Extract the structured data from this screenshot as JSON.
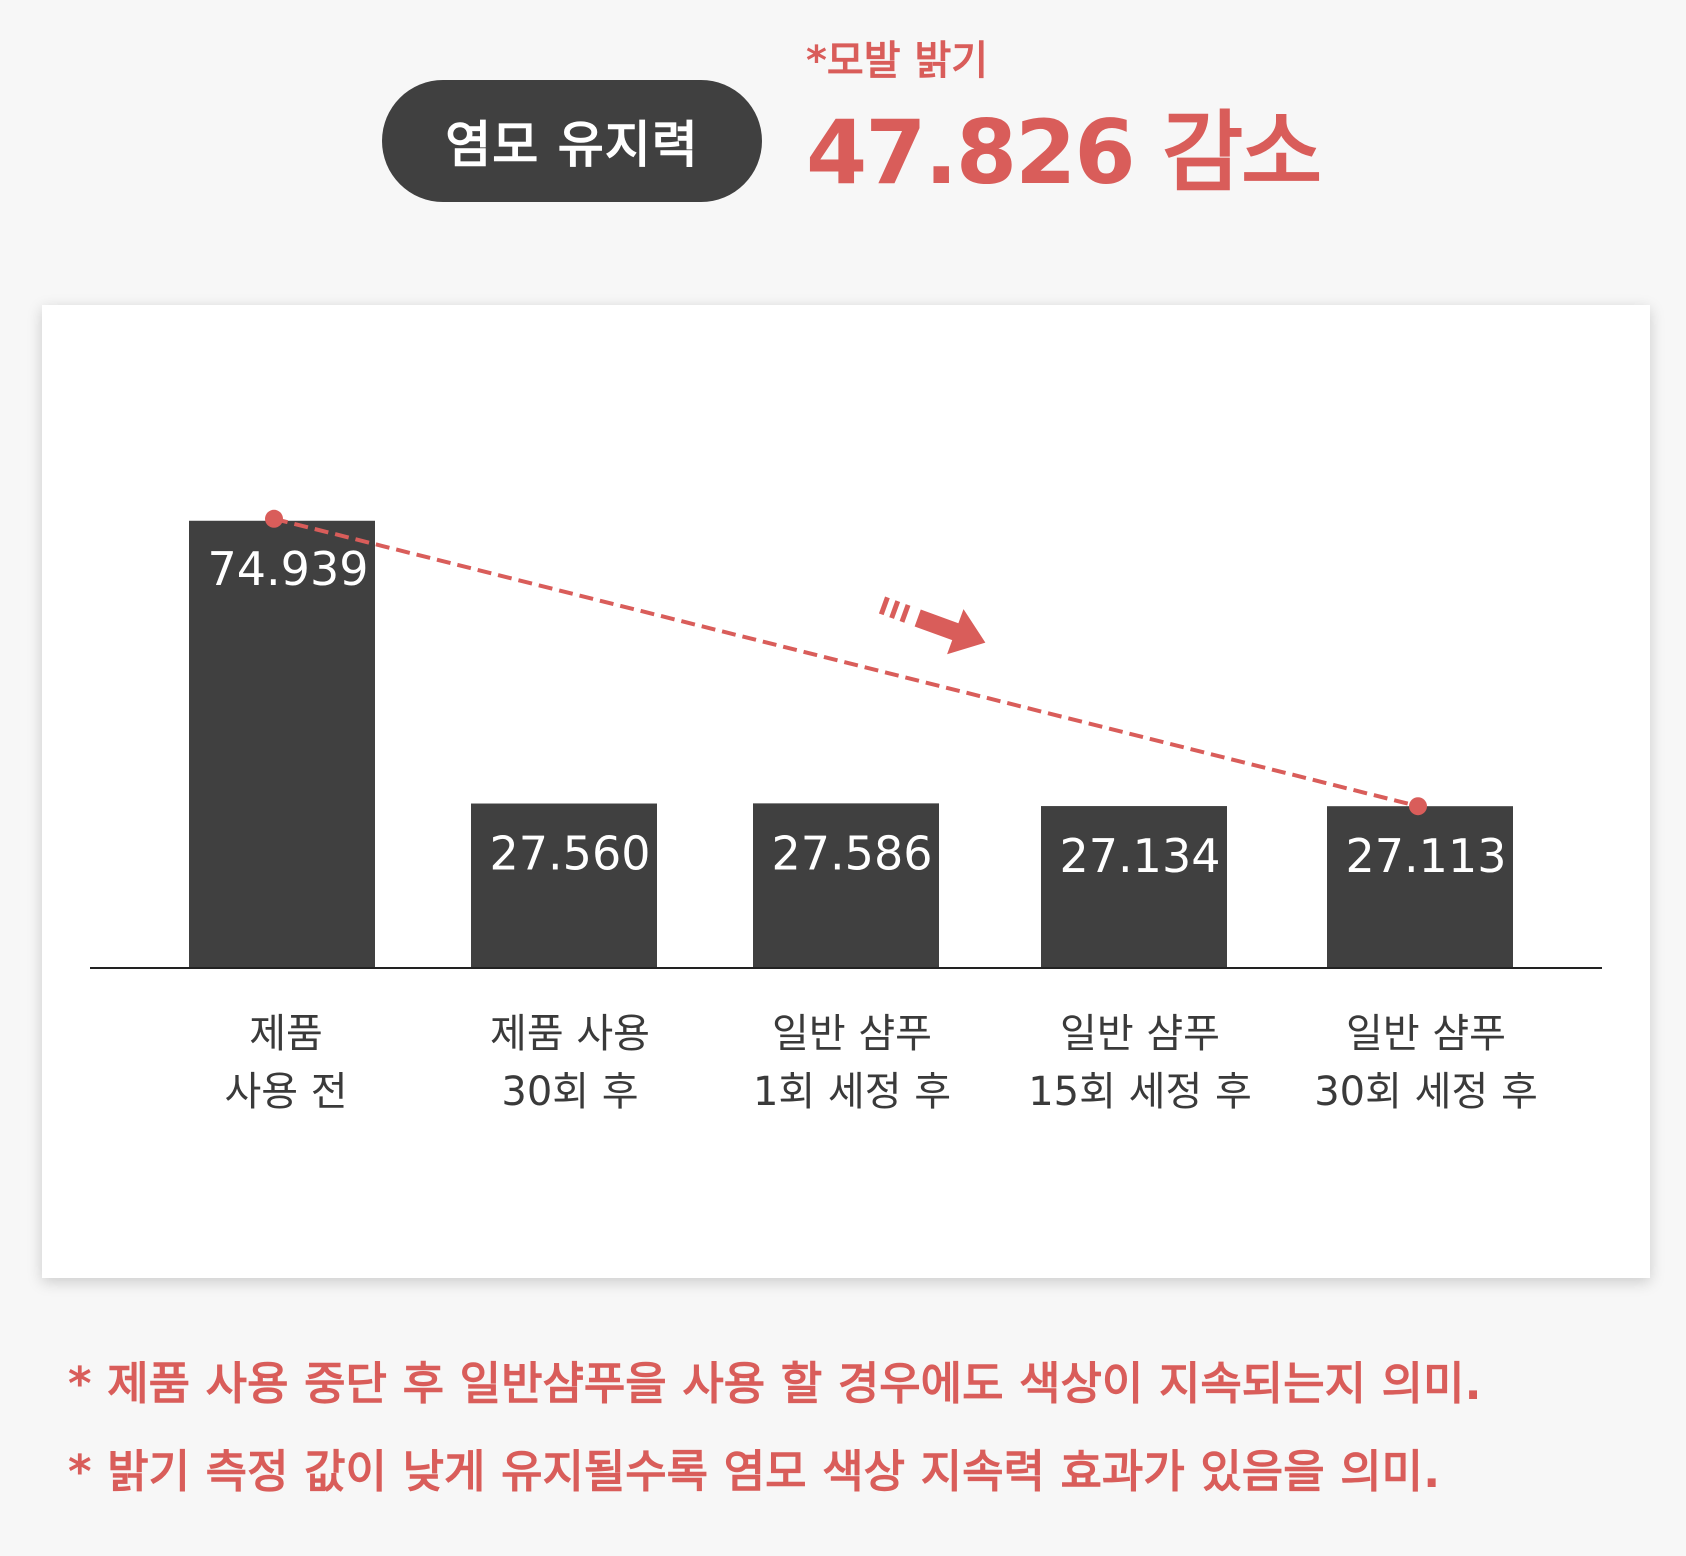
{
  "header": {
    "badge_label": "염모 유지력",
    "sub_label": "*모발 밝기",
    "headline": "47.826 감소"
  },
  "colors": {
    "bar": "#404040",
    "accent": "#d95d5a",
    "background": "#f7f7f7",
    "card": "#ffffff"
  },
  "chart_data": {
    "type": "bar",
    "title": "",
    "xlabel": "",
    "ylabel": "",
    "categories": [
      [
        "제품",
        "사용 전"
      ],
      [
        "제품 사용",
        "30회 후"
      ],
      [
        "일반 샴푸",
        "1회 세정 후"
      ],
      [
        "일반 샴푸",
        "15회 세정 후"
      ],
      [
        "일반 샴푸",
        "30회 세정 후"
      ]
    ],
    "values": [
      74.939,
      27.56,
      27.586,
      27.134,
      27.113
    ],
    "value_labels": [
      "74.939",
      "27.560",
      "27.586",
      "27.134",
      "27.113"
    ],
    "ylim": [
      0,
      100
    ],
    "grid": false,
    "trend_line": {
      "style": "dashed",
      "from_index": 0,
      "to_index": 4,
      "arrow": true
    }
  },
  "notes": [
    "* 제품 사용 중단 후 일반샴푸을 사용 할 경우에도 색상이 지속되는지 의미.",
    "* 밝기 측정 값이 낮게 유지될수록 염모 색상 지속력 효과가 있음을 의미."
  ]
}
